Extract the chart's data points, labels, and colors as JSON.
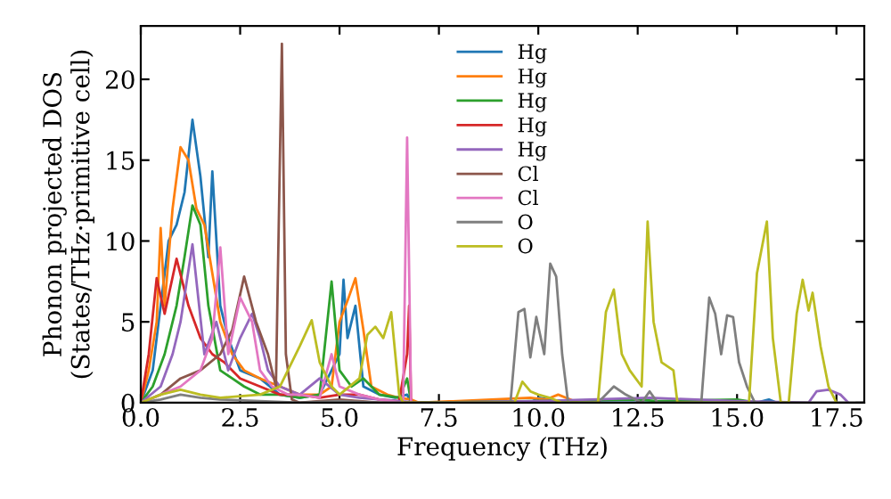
{
  "chart_data": {
    "type": "line",
    "xlabel": "Frequency (THz)",
    "ylabel": "Phonon projected DOS\n(States/THz·primitive cell)",
    "xlim": [
      0,
      18.2
    ],
    "ylim": [
      0,
      23.3
    ],
    "xticks": [
      {
        "value": 0,
        "label": "0.0"
      },
      {
        "value": 2.5,
        "label": "2.5"
      },
      {
        "value": 5,
        "label": "5.0"
      },
      {
        "value": 7.5,
        "label": "7.5"
      },
      {
        "value": 10,
        "label": "10.0"
      },
      {
        "value": 12.5,
        "label": "12.5"
      },
      {
        "value": 15,
        "label": "15.0"
      },
      {
        "value": 17.5,
        "label": "17.5"
      }
    ],
    "yticks": [
      0,
      5,
      10,
      15,
      20
    ],
    "grid": false,
    "legend": "top",
    "marker": "none",
    "line_style": "solid",
    "series": [
      {
        "name": "Hg",
        "color": "#1f77b4",
        "x": [
          0,
          0.3,
          0.5,
          0.7,
          0.9,
          1.1,
          1.3,
          1.5,
          1.7,
          1.8,
          2.0,
          2.2,
          2.5,
          3.0,
          3.5,
          4.0,
          4.5,
          5.0,
          5.1,
          5.2,
          5.4,
          5.6,
          6.0,
          6.4,
          6.7,
          6.8,
          7.0,
          9.8,
          10.0,
          10.3,
          10.6,
          15.5,
          15.8,
          16
        ],
        "values": [
          0,
          2,
          6,
          10,
          11,
          13,
          17.5,
          14,
          9,
          14.3,
          6,
          4,
          2,
          1.5,
          0.5,
          0.3,
          0.5,
          3,
          7.6,
          4,
          6,
          1,
          0.5,
          0.3,
          0.5,
          0,
          0,
          0,
          0.3,
          0.2,
          0,
          0,
          0.2,
          0
        ]
      },
      {
        "name": "Hg",
        "color": "#ff7f0e",
        "x": [
          0,
          0.2,
          0.4,
          0.5,
          0.6,
          0.8,
          1.0,
          1.2,
          1.4,
          1.6,
          1.8,
          2.0,
          2.3,
          2.6,
          3.0,
          3.5,
          4.0,
          4.5,
          4.8,
          5.0,
          5.2,
          5.4,
          5.6,
          5.8,
          6.2,
          6.5,
          6.8,
          7.0,
          9.8,
          10.2,
          10.5,
          10.8,
          11
        ],
        "values": [
          0,
          2,
          5,
          10.8,
          6,
          12,
          15.8,
          15,
          12,
          11,
          8,
          5,
          3,
          2,
          1.5,
          1,
          0.5,
          0.5,
          1,
          5,
          6.3,
          7.7,
          4.5,
          1,
          0.5,
          0.3,
          0.2,
          0,
          0.3,
          0.2,
          0.5,
          0.2,
          0
        ]
      },
      {
        "name": "Hg",
        "color": "#2ca02c",
        "x": [
          0,
          0.3,
          0.6,
          0.9,
          1.1,
          1.3,
          1.5,
          1.7,
          2.0,
          2.3,
          2.6,
          3.0,
          3.5,
          4.0,
          4.5,
          4.8,
          5.0,
          5.3,
          5.6,
          6.0,
          6.5,
          6.7,
          6.8,
          6.9,
          7.0,
          12.5,
          13,
          15,
          15.5
        ],
        "values": [
          0,
          1,
          3,
          6,
          9,
          12.2,
          11,
          6,
          2,
          1.5,
          1,
          0.5,
          0.5,
          0.3,
          0.5,
          7.5,
          2,
          1,
          1.5,
          0.5,
          0.3,
          1.5,
          0,
          0,
          0,
          0.2,
          0.1,
          0.2,
          0
        ]
      },
      {
        "name": "Hg",
        "color": "#d62728",
        "x": [
          0,
          0.2,
          0.4,
          0.6,
          0.9,
          1.2,
          1.5,
          1.8,
          2.1,
          2.5,
          3.0,
          3.5,
          4.0,
          4.5,
          5.0,
          5.5,
          6.0,
          6.5,
          6.7,
          6.75,
          6.8,
          7.0
        ],
        "values": [
          0,
          3,
          7.7,
          5.5,
          8.9,
          6,
          4,
          3,
          2.5,
          1.5,
          1,
          0.5,
          0.5,
          0.3,
          0.5,
          0.5,
          0.2,
          0.1,
          3,
          6,
          0,
          0
        ]
      },
      {
        "name": "Hg",
        "color": "#9467bd",
        "x": [
          0,
          0.5,
          0.8,
          1.0,
          1.3,
          1.6,
          1.9,
          2.2,
          2.5,
          2.8,
          3.0,
          3.2,
          3.5,
          4.0,
          4.5,
          5.0,
          5.5,
          6.0,
          7.0,
          10,
          12.8,
          15,
          16.8,
          17.0,
          17.3,
          17.6,
          17.8
        ],
        "values": [
          0,
          1,
          3,
          5,
          9.8,
          3,
          5,
          2,
          4,
          5.5,
          4,
          2,
          1,
          0.5,
          1.5,
          0.5,
          0.3,
          0.2,
          0,
          0.1,
          0.3,
          0.1,
          0,
          0.7,
          0.8,
          0.5,
          0
        ]
      },
      {
        "name": "Cl",
        "color": "#8c564b",
        "x": [
          0,
          0.5,
          1.0,
          1.5,
          2.0,
          2.3,
          2.6,
          2.9,
          3.2,
          3.4,
          3.55,
          3.65,
          3.8,
          4.0,
          4.5,
          5.0,
          6.0,
          7.0
        ],
        "values": [
          0,
          0.5,
          1.5,
          2,
          3,
          4.5,
          7.8,
          5,
          3,
          1,
          22.2,
          3,
          0.2,
          0,
          0.1,
          0.2,
          0,
          0
        ]
      },
      {
        "name": "Cl",
        "color": "#e377c2",
        "x": [
          0,
          0.5,
          1.0,
          1.5,
          1.8,
          2.0,
          2.2,
          2.5,
          2.8,
          3.0,
          3.3,
          3.7,
          4.0,
          4.5,
          4.8,
          5.0,
          5.5,
          6.0,
          6.6,
          6.7,
          6.8,
          7.0
        ],
        "values": [
          0,
          0.5,
          1,
          2,
          4,
          9.6,
          3,
          6.5,
          5,
          2,
          1,
          0.5,
          0.5,
          0.3,
          3,
          1,
          0.5,
          0.2,
          0,
          16.4,
          0,
          0
        ]
      },
      {
        "name": "O",
        "color": "#7f7f7f",
        "x": [
          0,
          0.5,
          1.0,
          1.5,
          2.0,
          3.0,
          4.0,
          5.0,
          6.0,
          9.3,
          9.5,
          9.65,
          9.8,
          9.95,
          10.15,
          10.3,
          10.45,
          10.6,
          10.75,
          11.5,
          11.9,
          12.2,
          12.6,
          12.8,
          13.0,
          14.1,
          14.3,
          14.45,
          14.6,
          14.75,
          14.9,
          15.05,
          15.25,
          15.45,
          18.2
        ],
        "values": [
          0,
          0.2,
          0.5,
          0.3,
          0.2,
          0.1,
          0,
          0.1,
          0,
          0,
          5.6,
          5.8,
          2.8,
          5.3,
          3,
          8.6,
          7.8,
          3,
          0,
          0,
          1,
          0.5,
          0,
          0.7,
          0,
          0,
          6.5,
          5.5,
          3,
          5.4,
          5.3,
          2.5,
          1,
          0,
          0
        ]
      },
      {
        "name": "O",
        "color": "#bcbd22",
        "x": [
          0,
          0.5,
          1.0,
          1.5,
          2.0,
          3.0,
          3.5,
          3.8,
          4.0,
          4.3,
          4.5,
          4.8,
          5.0,
          5.5,
          5.7,
          5.9,
          6.1,
          6.3,
          6.5,
          6.6,
          9.4,
          9.6,
          9.8,
          10.0,
          10.3,
          10.6,
          11.5,
          11.7,
          11.9,
          12.1,
          12.3,
          12.6,
          12.75,
          12.9,
          13.1,
          13.4,
          13.5,
          15.3,
          15.5,
          15.75,
          15.9,
          16.1,
          16.3,
          16.5,
          16.65,
          16.8,
          16.9,
          17.1,
          17.3,
          17.5
        ],
        "values": [
          0,
          0.5,
          0.8,
          0.5,
          0.3,
          0.5,
          1,
          2.5,
          3.5,
          5.1,
          2.5,
          1,
          0.5,
          1.5,
          4.2,
          4.7,
          4,
          5.6,
          0.5,
          0,
          0,
          1.3,
          0.7,
          0.5,
          0.3,
          0,
          0,
          5.6,
          7,
          3,
          2,
          1,
          11.2,
          5,
          2.5,
          2,
          0,
          0,
          8,
          11.2,
          4,
          0,
          0,
          5.5,
          7.6,
          5.7,
          6.8,
          3.5,
          1,
          0
        ]
      }
    ]
  }
}
